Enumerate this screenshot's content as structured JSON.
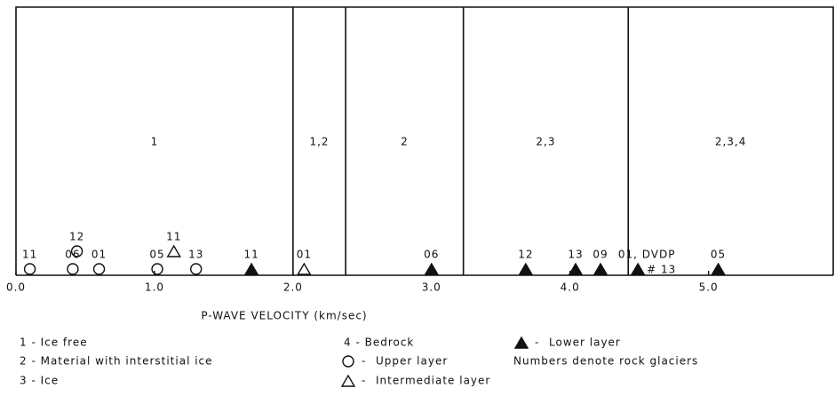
{
  "chart_data": {
    "type": "scatter",
    "xlabel": "P-WAVE VELOCITY (km/sec)",
    "xlim": [
      0,
      5.9
    ],
    "xticks": [
      {
        "value": 0,
        "label": "0.0"
      },
      {
        "value": 1,
        "label": "1.0"
      },
      {
        "value": 2,
        "label": "2.0"
      },
      {
        "value": 3,
        "label": "3.0"
      },
      {
        "value": 4,
        "label": "4.0"
      },
      {
        "value": 5,
        "label": "5.0"
      }
    ],
    "regions": [
      {
        "label": "1",
        "from": 0,
        "to": 2.0
      },
      {
        "label": "1,2",
        "from": 2.0,
        "to": 2.38
      },
      {
        "label": "2",
        "from": 2.38,
        "to": 3.23
      },
      {
        "label": "2,3",
        "from": 3.23,
        "to": 4.42
      },
      {
        "label": "2,3,4",
        "from": 4.42,
        "to": 5.9
      }
    ],
    "series": [
      {
        "name": "Upper layer",
        "marker": "circle",
        "color": "#111",
        "filled": false,
        "x": [
          0.1,
          0.41,
          0.44,
          0.6,
          1.02,
          1.3
        ],
        "labels": [
          [
            "11"
          ],
          [
            "06"
          ],
          [
            "12"
          ],
          [
            "01"
          ],
          [
            "05"
          ],
          [
            "13"
          ]
        ]
      },
      {
        "name": "Intermediate layer",
        "marker": "triangle",
        "color": "#111",
        "filled": false,
        "x": [
          1.14,
          2.08
        ],
        "labels": [
          [
            "11"
          ],
          [
            "01"
          ]
        ]
      },
      {
        "name": "Lower layer",
        "marker": "triangle",
        "color": "#111",
        "filled": true,
        "x": [
          1.7,
          3.0,
          3.68,
          4.04,
          4.22,
          4.49,
          5.07
        ],
        "labels": [
          [
            "11"
          ],
          [
            "06"
          ],
          [
            "12"
          ],
          [
            "13"
          ],
          [
            "09"
          ],
          [
            "01, DVDP",
            "# 13"
          ],
          [
            "05"
          ]
        ]
      }
    ],
    "legend_separator": "-",
    "zone_legend": [
      "1 - Ice free",
      "2 - Material with interstitial ice",
      "3 - Ice",
      "4 - Bedrock"
    ],
    "note": "Numbers denote rock glaciers"
  }
}
